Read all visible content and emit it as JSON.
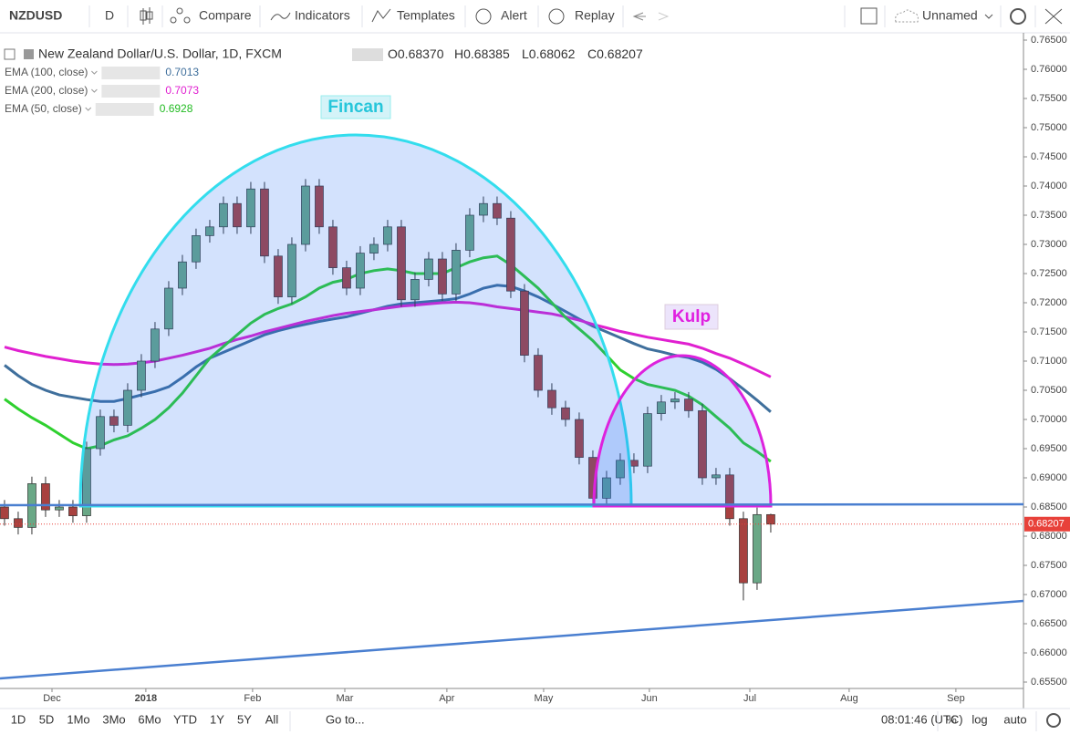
{
  "toolbar": {
    "symbol": "NZDUSD",
    "interval": "D",
    "buttons": [
      "Compare",
      "Indicators",
      "Templates",
      "Alert",
      "Replay"
    ],
    "layout": "Unnamed"
  },
  "bottom_bar": {
    "ranges": [
      "1D",
      "5D",
      "1Mo",
      "3Mo",
      "6Mo",
      "YTD",
      "1Y",
      "5Y",
      "All"
    ],
    "goto": "Go to...",
    "time": "08:01:46 (UTC)",
    "options": [
      "%",
      "log",
      "auto"
    ]
  },
  "chart_data": {
    "type": "candlestick",
    "title": "New Zealand Dollar/U.S. Dollar, 1D, FXCM",
    "ohlc": [
      {
        "key": "O",
        "text": "0.68370"
      },
      {
        "key": "H",
        "text": "0.68385"
      },
      {
        "key": "L",
        "text": "0.68062"
      },
      {
        "key": "C",
        "text": "0.68207"
      }
    ],
    "up_color": "#6aa886",
    "down_color": "#a8413f",
    "open": [
      0.685,
      0.683,
      0.6815,
      0.689,
      0.6845,
      0.685,
      0.6835,
      0.695,
      0.7005,
      0.699,
      0.705,
      0.71,
      0.7155,
      0.7225,
      0.727,
      0.7315,
      0.733,
      0.737,
      0.733,
      0.7395,
      0.728,
      0.721,
      0.73,
      0.74,
      0.733,
      0.726,
      0.7225,
      0.7285,
      0.73,
      0.733,
      0.7205,
      0.724,
      0.7275,
      0.7215,
      0.729,
      0.735,
      0.737,
      0.7345,
      0.722,
      0.711,
      0.705,
      0.702,
      0.7,
      0.6935,
      0.6865,
      0.69,
      0.693,
      0.692,
      0.701,
      0.703,
      0.7035,
      0.7015,
      0.69,
      0.6905,
      0.683,
      0.672,
      0.6837
    ],
    "high": [
      0.6862,
      0.6842,
      0.6902,
      0.6902,
      0.6862,
      0.6862,
      0.6962,
      0.7017,
      0.7017,
      0.7062,
      0.7112,
      0.7167,
      0.7237,
      0.7282,
      0.7327,
      0.7342,
      0.7382,
      0.7382,
      0.7407,
      0.7407,
      0.7292,
      0.7312,
      0.7412,
      0.7412,
      0.7342,
      0.7272,
      0.7297,
      0.7312,
      0.7342,
      0.7342,
      0.7252,
      0.7287,
      0.7287,
      0.7302,
      0.7362,
      0.7382,
      0.7382,
      0.7357,
      0.7232,
      0.7122,
      0.7062,
      0.7032,
      0.7012,
      0.6947,
      0.6912,
      0.6942,
      0.6942,
      0.7022,
      0.7042,
      0.7047,
      0.7047,
      0.7027,
      0.6917,
      0.6917,
      0.6842,
      0.6849,
      0.68385
    ],
    "low": [
      0.6818,
      0.6803,
      0.6803,
      0.6833,
      0.6833,
      0.6823,
      0.6823,
      0.6938,
      0.6978,
      0.6978,
      0.7038,
      0.7088,
      0.7143,
      0.7213,
      0.7258,
      0.7303,
      0.7318,
      0.7318,
      0.7318,
      0.7268,
      0.7198,
      0.7198,
      0.7288,
      0.7318,
      0.7248,
      0.7213,
      0.7213,
      0.7273,
      0.7288,
      0.7193,
      0.7193,
      0.7228,
      0.7203,
      0.7203,
      0.7278,
      0.7338,
      0.7333,
      0.7208,
      0.7098,
      0.7038,
      0.7008,
      0.6988,
      0.6923,
      0.6853,
      0.6853,
      0.6888,
      0.6908,
      0.6908,
      0.6998,
      0.7018,
      0.7003,
      0.6888,
      0.6888,
      0.6818,
      0.669,
      0.6708,
      0.68062
    ],
    "close": [
      0.683,
      0.6815,
      0.689,
      0.6845,
      0.685,
      0.6835,
      0.695,
      0.7005,
      0.699,
      0.705,
      0.71,
      0.7155,
      0.7225,
      0.727,
      0.7315,
      0.733,
      0.737,
      0.733,
      0.7395,
      0.728,
      0.721,
      0.73,
      0.74,
      0.733,
      0.726,
      0.7225,
      0.7285,
      0.73,
      0.733,
      0.7205,
      0.724,
      0.7275,
      0.7215,
      0.729,
      0.735,
      0.737,
      0.7345,
      0.722,
      0.711,
      0.705,
      0.702,
      0.7,
      0.6935,
      0.6865,
      0.69,
      0.693,
      0.692,
      0.701,
      0.703,
      0.7035,
      0.7015,
      0.69,
      0.6905,
      0.683,
      0.672,
      0.6837,
      0.68207
    ],
    "series": [
      {
        "name": "EMA (100, close)",
        "color": "#3f6f9c",
        "value_color": "#3f6f9c",
        "values": [
          0.7093,
          0.7075,
          0.706,
          0.705,
          0.7042,
          0.7038,
          0.7034,
          0.7031,
          0.7031,
          0.7036,
          0.7042,
          0.7048,
          0.7056,
          0.7072,
          0.709,
          0.7105,
          0.7115,
          0.7125,
          0.7135,
          0.7145,
          0.7152,
          0.7158,
          0.7163,
          0.7168,
          0.7172,
          0.7176,
          0.7182,
          0.7188,
          0.7194,
          0.7198,
          0.72,
          0.7202,
          0.7204,
          0.7207,
          0.7215,
          0.7225,
          0.723,
          0.7228,
          0.722,
          0.721,
          0.7198,
          0.7185,
          0.7172,
          0.716,
          0.715,
          0.714,
          0.713,
          0.7121,
          0.7116,
          0.711,
          0.7106,
          0.7098,
          0.7086,
          0.707,
          0.7052,
          0.7033,
          0.7013
        ]
      },
      {
        "name": "EMA (200, close)",
        "color": "#e020d0",
        "value_color": "#e020d0",
        "values": [
          0.7124,
          0.7118,
          0.7113,
          0.7108,
          0.7104,
          0.71,
          0.7097,
          0.7095,
          0.7094,
          0.7095,
          0.7097,
          0.71,
          0.7105,
          0.711,
          0.7116,
          0.7122,
          0.713,
          0.7137,
          0.7143,
          0.715,
          0.7156,
          0.7162,
          0.7168,
          0.7173,
          0.7178,
          0.7182,
          0.7185,
          0.7188,
          0.7191,
          0.7194,
          0.7196,
          0.7198,
          0.72,
          0.7201,
          0.72,
          0.7197,
          0.7193,
          0.719,
          0.7187,
          0.7184,
          0.7181,
          0.7176,
          0.717,
          0.7163,
          0.7157,
          0.7151,
          0.7146,
          0.7141,
          0.7137,
          0.7133,
          0.7129,
          0.7122,
          0.7113,
          0.7105,
          0.7095,
          0.7084,
          0.7073
        ]
      },
      {
        "name": "EMA (50, close)",
        "color": "#2fd02f",
        "value_color": "#22bb22",
        "values": [
          0.7035,
          0.7018,
          0.7003,
          0.699,
          0.6975,
          0.696,
          0.695,
          0.6955,
          0.6965,
          0.6972,
          0.6985,
          0.7,
          0.702,
          0.7045,
          0.7075,
          0.7105,
          0.7125,
          0.7145,
          0.7165,
          0.718,
          0.719,
          0.7198,
          0.721,
          0.7225,
          0.7235,
          0.724,
          0.725,
          0.7255,
          0.7258,
          0.7255,
          0.725,
          0.725,
          0.725,
          0.726,
          0.727,
          0.7277,
          0.728,
          0.7265,
          0.7245,
          0.7225,
          0.72,
          0.7175,
          0.7155,
          0.7135,
          0.711,
          0.7085,
          0.707,
          0.706,
          0.7055,
          0.705,
          0.704,
          0.7025,
          0.7005,
          0.6985,
          0.696,
          0.6945,
          0.6928
        ]
      }
    ],
    "annotations": [
      "Fincan",
      "Kulp"
    ],
    "last_price_color": "#e8413a",
    "ylim": [
      0.655,
      0.765
    ],
    "yticks": [
      {
        "value": 0.655,
        "label": "0.65500"
      },
      {
        "value": 0.66,
        "label": "0.66000"
      },
      {
        "value": 0.665,
        "label": "0.66500"
      },
      {
        "value": 0.67,
        "label": "0.67000"
      },
      {
        "value": 0.675,
        "label": "0.67500"
      },
      {
        "value": 0.68,
        "label": "0.68000"
      },
      {
        "value": 0.685,
        "label": "0.68500"
      },
      {
        "value": 0.69,
        "label": "0.69000"
      },
      {
        "value": 0.695,
        "label": "0.69500"
      },
      {
        "value": 0.7,
        "label": "0.70000"
      },
      {
        "value": 0.705,
        "label": "0.70500"
      },
      {
        "value": 0.71,
        "label": "0.71000"
      },
      {
        "value": 0.715,
        "label": "0.71500"
      },
      {
        "value": 0.72,
        "label": "0.72000"
      },
      {
        "value": 0.725,
        "label": "0.72500"
      },
      {
        "value": 0.73,
        "label": "0.73000"
      },
      {
        "value": 0.735,
        "label": "0.73500"
      },
      {
        "value": 0.74,
        "label": "0.74000"
      },
      {
        "value": 0.745,
        "label": "0.74500"
      },
      {
        "value": 0.75,
        "label": "0.75000"
      },
      {
        "value": 0.755,
        "label": "0.75500"
      },
      {
        "value": 0.76,
        "label": "0.76000"
      },
      {
        "value": 0.765,
        "label": "0.76500"
      }
    ],
    "xlim": [
      -0.33,
      74.47
    ],
    "xticks": [
      {
        "value": 3.47,
        "label": "Dec"
      },
      {
        "value": 10.33,
        "label": "2018"
      },
      {
        "value": 18.13,
        "label": "Feb"
      },
      {
        "value": 24.87,
        "label": "Mar"
      },
      {
        "value": 32.33,
        "label": "Apr"
      },
      {
        "value": 39.4,
        "label": "May"
      },
      {
        "value": 47.13,
        "label": "Jun"
      },
      {
        "value": 54.47,
        "label": "Jul"
      },
      {
        "value": 61.73,
        "label": "Aug"
      },
      {
        "value": 69.53,
        "label": "Sep"
      }
    ]
  }
}
